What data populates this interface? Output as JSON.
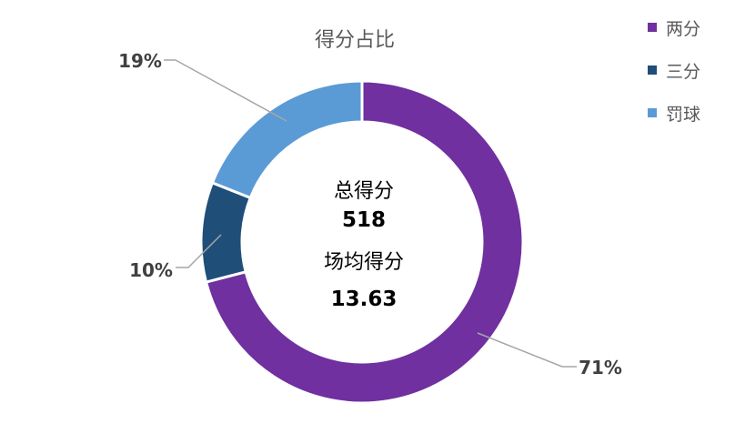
{
  "chart_data": {
    "type": "donut",
    "title": "得分占比",
    "categories": [
      "两分",
      "三分",
      "罚球"
    ],
    "values": [
      71,
      10,
      19
    ],
    "value_labels": [
      "71%",
      "10%",
      "19%"
    ],
    "colors": [
      "#7030A0",
      "#1F4E79",
      "#5B9BD5"
    ],
    "legend_position": "top-right",
    "center": {
      "total_label": "总得分",
      "total_value": "518",
      "avg_label": "场均得分",
      "avg_value": "13.63"
    }
  }
}
